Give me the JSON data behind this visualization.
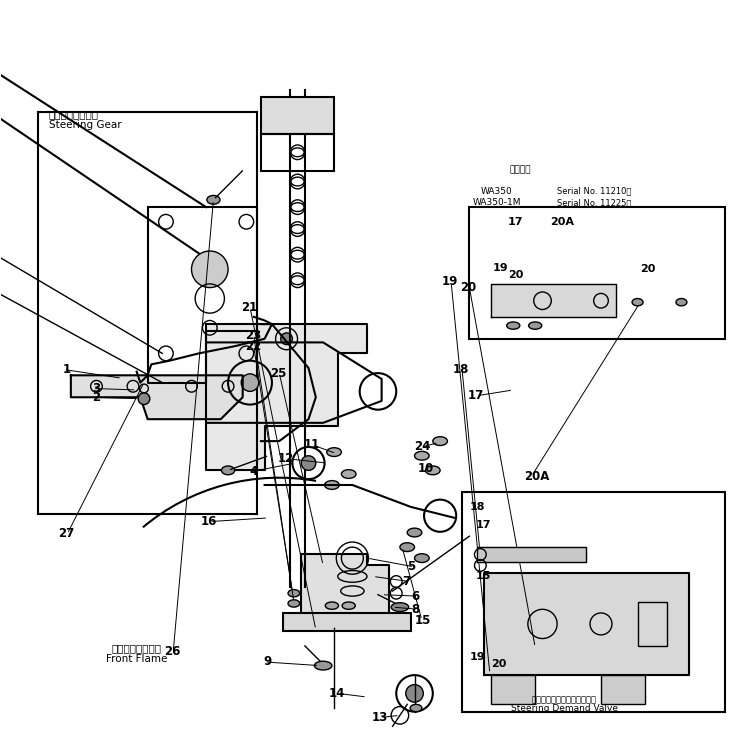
{
  "title": "",
  "bg_color": "#ffffff",
  "line_color": "#000000",
  "fig_width": 7.34,
  "fig_height": 7.36,
  "dpi": 100,
  "labels": {
    "steering_gear_jp": "ステアリングギア",
    "steering_gear_en": "Steering Gear",
    "front_flame_jp": "フロントフレーム",
    "front_flame_en": "Front Flame",
    "steering_demand_jp": "ステアリングデマンドバルブ",
    "steering_demand_en": "Steering Demand Valve",
    "applicable_jp": "適用号機",
    "wa350": "WA350",
    "wa350_serial": "Serial No. 11210～",
    "wa350_1m": "WA350-1M",
    "wa350_1m_serial": "Serial No. 11225～"
  }
}
